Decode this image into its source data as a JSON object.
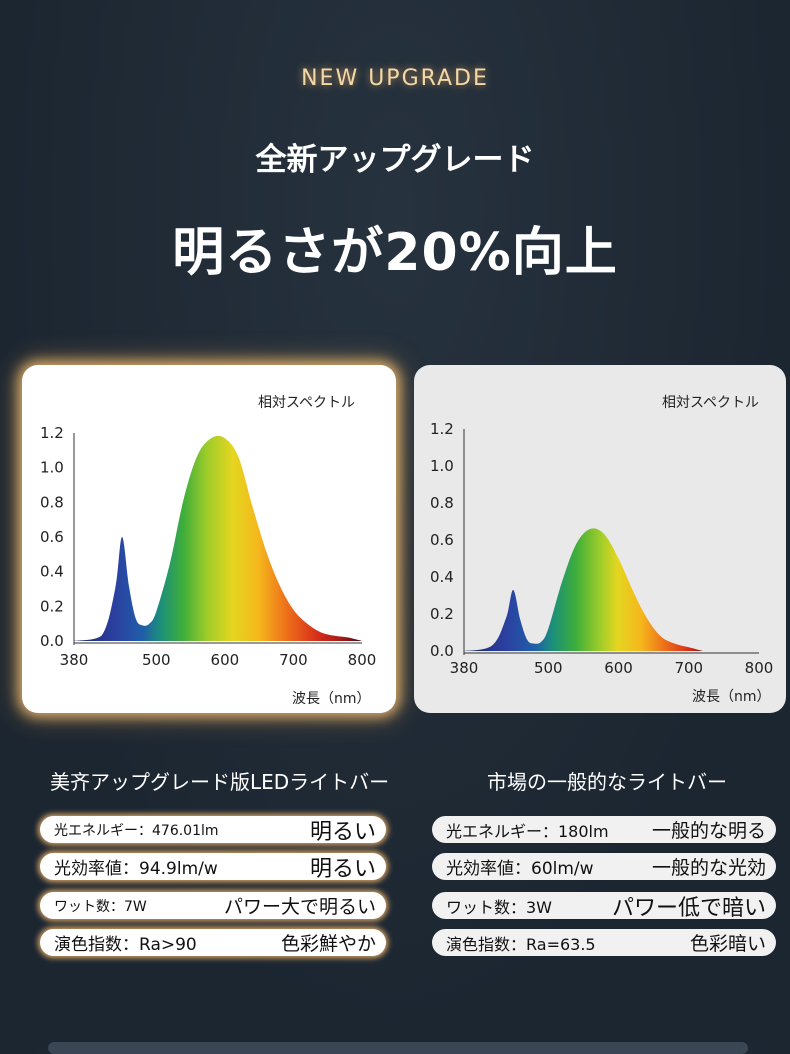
{
  "header": {
    "badge": "NEW UPGRADE",
    "title": "全新アップグレード",
    "headline": "明るさが20%向上"
  },
  "charts": {
    "y_ticks": [
      "1.2",
      "1.0",
      "0.8",
      "0.6",
      "0.4",
      "0.2",
      "0.0"
    ],
    "x_ticks": [
      "380",
      "500",
      "600",
      "700",
      "800"
    ],
    "y_caption": "相対スペクトル",
    "x_caption": "波長（nm）"
  },
  "chart_data": [
    {
      "type": "area",
      "title": "",
      "ylabel": "相対スペクトル",
      "xlabel": "波長（nm）",
      "xlim": [
        380,
        800
      ],
      "ylim": [
        0,
        1.2
      ],
      "series": [
        {
          "x": [
            380,
            420,
            440,
            450,
            460,
            470,
            480,
            490,
            500,
            520,
            540,
            560,
            580,
            600,
            620,
            640,
            660,
            680,
            700,
            720,
            740,
            760,
            780,
            800
          ],
          "values": [
            0.0,
            0.03,
            0.3,
            0.6,
            0.32,
            0.13,
            0.09,
            0.1,
            0.17,
            0.45,
            0.82,
            1.07,
            1.17,
            1.17,
            1.06,
            0.78,
            0.52,
            0.32,
            0.18,
            0.1,
            0.05,
            0.03,
            0.02,
            0.0
          ]
        }
      ]
    },
    {
      "type": "area",
      "title": "",
      "ylabel": "相対スペクトル",
      "xlabel": "波長（nm）",
      "xlim": [
        380,
        800
      ],
      "ylim": [
        0,
        1.2
      ],
      "series": [
        {
          "x": [
            380,
            420,
            440,
            450,
            460,
            470,
            480,
            490,
            500,
            520,
            540,
            560,
            580,
            600,
            620,
            640,
            660,
            680,
            700,
            720
          ],
          "values": [
            0.0,
            0.03,
            0.18,
            0.33,
            0.17,
            0.06,
            0.04,
            0.05,
            0.12,
            0.38,
            0.58,
            0.66,
            0.63,
            0.5,
            0.33,
            0.18,
            0.08,
            0.04,
            0.02,
            0.0
          ]
        }
      ]
    }
  ],
  "left_column": {
    "title": "美齐アップグレード版LEDライトバー",
    "rows": [
      {
        "label": "光エネルギー：476.01lm",
        "value": "明るい"
      },
      {
        "label": "光効率値：94.9lm/w",
        "value": "明るい"
      },
      {
        "label": "ワット数：7W",
        "value": "パワー大で明るい"
      },
      {
        "label": "演色指数：Ra>90",
        "value": "色彩鮮やか"
      }
    ]
  },
  "right_column": {
    "title": "市場の一般的なライトバー",
    "rows": [
      {
        "label": "光エネルギー：180lm",
        "value": "一般的な明る"
      },
      {
        "label": "光効率値：60lm/w",
        "value": "一般的な光効"
      },
      {
        "label": "ワット数：3W",
        "value": "パワー低で暗い"
      },
      {
        "label": "演色指数：Ra=63.5",
        "value": "色彩暗い"
      }
    ]
  },
  "colors": {
    "background": "#1f2a36",
    "glow": "#f4d9a6",
    "card_left": "#ffffff",
    "card_right": "#e9e9e9"
  }
}
